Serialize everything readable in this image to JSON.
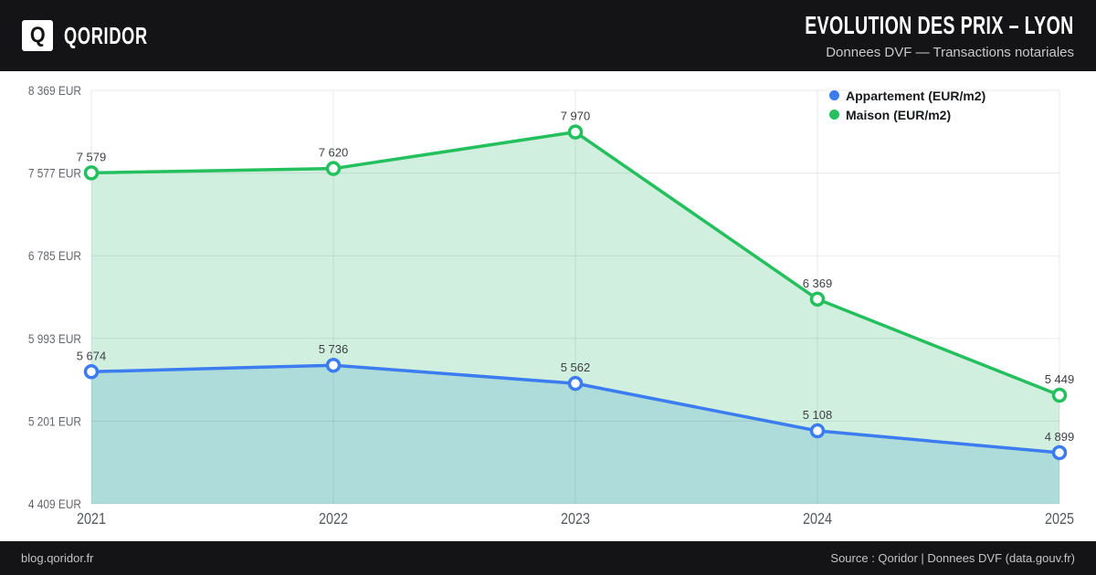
{
  "brand": {
    "logo_letter": "Q",
    "name": "QORIDOR"
  },
  "header": {
    "title": "EVOLUTION DES PRIX – LYON",
    "subtitle": "Donnees DVF — Transactions notariales"
  },
  "footer": {
    "left": "blog.qoridor.fr",
    "right": "Source : Qoridor | Donnees DVF (data.gouv.fr)"
  },
  "chart_data": {
    "type": "line",
    "title": "Evolution des prix - Lyon",
    "x": [
      2021,
      2022,
      2023,
      2024,
      2025
    ],
    "series": [
      {
        "name": "Appartement (EUR/m2)",
        "color": "#3b7cf0",
        "area_fill": "#aedcda",
        "values": [
          5674,
          5736,
          5562,
          5108,
          4899
        ]
      },
      {
        "name": "Maison (EUR/m2)",
        "color": "#24c05e",
        "area_fill": "#d1efdf",
        "values": [
          7579,
          7620,
          7970,
          6369,
          5449
        ]
      }
    ],
    "y_ticks": [
      4409,
      5201,
      5993,
      6785,
      7577,
      8369
    ],
    "y_tick_suffix": " EUR",
    "ylim": [
      4409,
      8369
    ],
    "grid": true,
    "legend_position": "top-right",
    "point_labels_visible": true
  }
}
